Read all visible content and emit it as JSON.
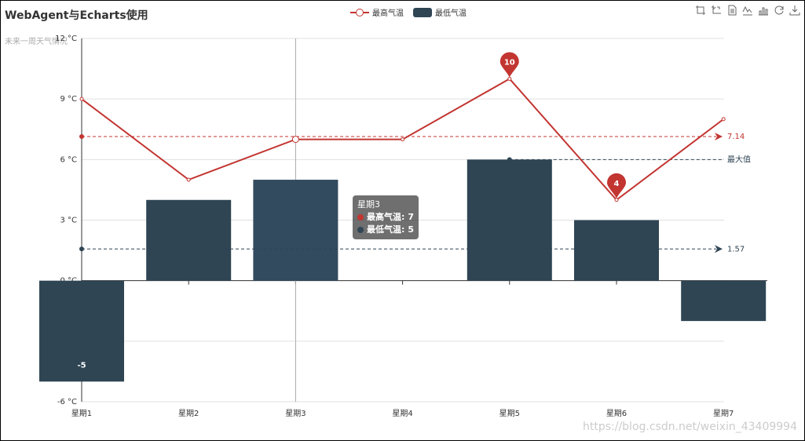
{
  "colors": {
    "high": "#c23531",
    "low": "#2f4554",
    "low_highlight": "#334b5f",
    "axis": "#333333",
    "grid": "#e0e0e0",
    "text": "#333333"
  },
  "legend": [
    {
      "name": "最高气温",
      "kind": "line"
    },
    {
      "name": "最低气温",
      "kind": "bar"
    }
  ],
  "toolbox": [
    "zoom-icon",
    "zoom-reset-icon",
    "data-view-icon",
    "line-chart-icon",
    "bar-chart-icon",
    "restore-icon",
    "save-image-icon"
  ],
  "tooltip": {
    "title": "星期3",
    "rows": [
      {
        "label": "最高气温:",
        "value": "7"
      },
      {
        "label": "最低气温:",
        "value": "5"
      }
    ]
  },
  "watermark": "https://blog.csdn.net/weixin_43409994",
  "chart_data": {
    "type": "bar",
    "title": "WebAgent与Echarts使用",
    "subtitle": "未来一周天气情况",
    "categories": [
      "星期1",
      "星期2",
      "星期3",
      "星期4",
      "星期5",
      "星期6",
      "星期7"
    ],
    "y_ticks": [
      "12 °C",
      "9 °C",
      "6 °C",
      "3 °C",
      "0 °C",
      "-6 °C"
    ],
    "ylim": [
      -6,
      12
    ],
    "y_tick_values": [
      12,
      9,
      6,
      3,
      0,
      -6
    ],
    "grid_values": [
      12,
      9,
      6,
      3,
      0,
      -3,
      -6
    ],
    "series": [
      {
        "name": "最高气温",
        "kind": "line",
        "values": [
          9,
          5,
          7,
          7,
          10,
          4,
          8
        ],
        "mark_points": [
          {
            "label": "10",
            "index": 4,
            "value": 10
          },
          {
            "label": "4",
            "index": 5,
            "value": 4
          }
        ],
        "mark_line": {
          "label": "7.14",
          "value": 7.14
        }
      },
      {
        "name": "最低气温",
        "kind": "bar",
        "values": [
          -5,
          4,
          5,
          0,
          6,
          3,
          -2
        ],
        "data_label": {
          "index": 0,
          "label": "-5"
        },
        "mark_lines": [
          {
            "label": "最大值",
            "value": 6,
            "from_index": 4
          },
          {
            "label": "1.57",
            "value": 1.57
          }
        ]
      }
    ]
  }
}
